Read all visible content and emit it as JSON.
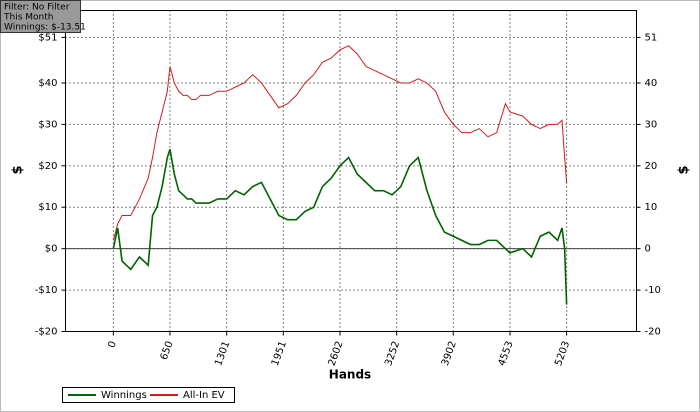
{
  "chart_data": {
    "type": "line",
    "info": [
      "Filter: No Filter",
      "This Month",
      "Winnings: $-13.51"
    ],
    "xlabel": "Hands",
    "ylabel": "$",
    "y2label": "$",
    "x": [
      0,
      50,
      100,
      200,
      300,
      400,
      450,
      500,
      560,
      620,
      650,
      700,
      750,
      800,
      850,
      900,
      950,
      1000,
      1100,
      1200,
      1301,
      1400,
      1500,
      1600,
      1700,
      1800,
      1900,
      2000,
      2100,
      2200,
      2300,
      2400,
      2500,
      2602,
      2700,
      2800,
      2900,
      3000,
      3100,
      3200,
      3300,
      3400,
      3500,
      3600,
      3700,
      3800,
      3902,
      4000,
      4100,
      4200,
      4300,
      4400,
      4500,
      4553,
      4700,
      4800,
      4900,
      5000,
      5100,
      5150,
      5180,
      5203
    ],
    "series": [
      {
        "name": "Winnings",
        "color": "#006400",
        "values": [
          0,
          5,
          -3,
          -5,
          -2,
          -4,
          8,
          10,
          15,
          22,
          24,
          18,
          14,
          13,
          12,
          12,
          11,
          11,
          11,
          12,
          12,
          14,
          13,
          15,
          16,
          12,
          8,
          7,
          7,
          9,
          10,
          15,
          17,
          20,
          22,
          18,
          16,
          14,
          14,
          13,
          15,
          20,
          22,
          14,
          8,
          4,
          3,
          2,
          1,
          1,
          2,
          2,
          0,
          -1,
          0,
          -2,
          3,
          4,
          2,
          5,
          0,
          -13.51
        ]
      },
      {
        "name": "All-In EV",
        "color": "#d02020",
        "values": [
          2,
          6,
          8,
          8,
          12,
          17,
          22,
          28,
          33,
          38,
          44,
          40,
          38,
          37,
          37,
          36,
          36,
          37,
          37,
          38,
          38,
          39,
          40,
          42,
          40,
          37,
          34,
          35,
          37,
          40,
          42,
          45,
          46,
          48,
          49,
          47,
          44,
          43,
          42,
          41,
          40,
          40,
          41,
          40,
          38,
          33,
          30,
          28,
          28,
          29,
          27,
          28,
          35,
          33,
          32,
          30,
          29,
          30,
          30,
          31,
          22,
          16
        ]
      }
    ],
    "xlim": [
      -549,
      6005
    ],
    "xticks": [
      0,
      650,
      1301,
      1951,
      2602,
      3252,
      3902,
      4553,
      5203
    ],
    "ylim": [
      -20,
      57.5
    ],
    "yticks": [
      {
        "value": -20,
        "label": "-$20"
      },
      {
        "value": -10,
        "label": "-$10"
      },
      {
        "value": 0,
        "label": "$0"
      },
      {
        "value": 10,
        "label": "$10"
      },
      {
        "value": 20,
        "label": "$20"
      },
      {
        "value": 30,
        "label": "$30"
      },
      {
        "value": 40,
        "label": "$40"
      },
      {
        "value": 51,
        "label": "$51"
      }
    ],
    "y2lim": [
      -20,
      57.5
    ],
    "y2ticks": [
      -20,
      -10,
      0,
      10,
      20,
      30,
      40,
      51
    ],
    "grid": true,
    "legend": "bottom-left"
  }
}
